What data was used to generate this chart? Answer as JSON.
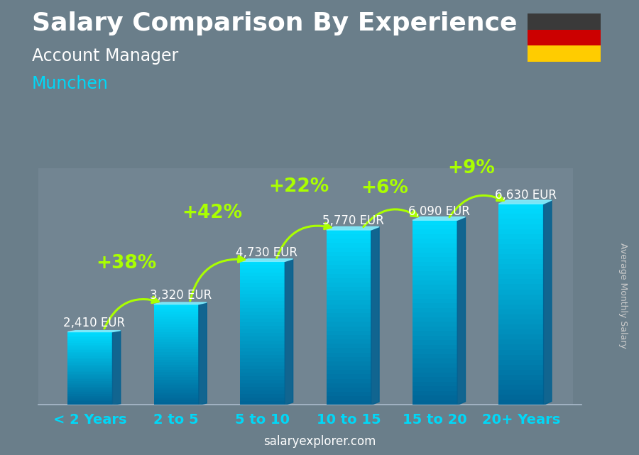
{
  "title": "Salary Comparison By Experience",
  "subtitle1": "Account Manager",
  "subtitle2": "Munchen",
  "categories": [
    "< 2 Years",
    "2 to 5",
    "5 to 10",
    "10 to 15",
    "15 to 20",
    "20+ Years"
  ],
  "values": [
    2410,
    3320,
    4730,
    5770,
    6090,
    6630
  ],
  "pct_changes": [
    null,
    "+38%",
    "+42%",
    "+22%",
    "+6%",
    "+9%"
  ],
  "value_labels": [
    "2,410 EUR",
    "3,320 EUR",
    "4,730 EUR",
    "5,770 EUR",
    "6,090 EUR",
    "6,630 EUR"
  ],
  "bar_color_mid": "#00b8e0",
  "bar_color_top": "#00d8f8",
  "bar_color_bottom": "#0078b0",
  "bar_color_side": "#008ab8",
  "bar_color_top_face": "#40e8ff",
  "bg_color": "#6a7e8a",
  "title_color": "#ffffff",
  "subtitle1_color": "#ffffff",
  "subtitle2_color": "#00d8f8",
  "pct_color": "#aaff00",
  "value_color": "#ffffff",
  "tick_color": "#00d8f8",
  "watermark_bold_color": "#ffffff",
  "watermark_regular_color": "#aaddff",
  "ylabel_color": "#cccccc",
  "watermark": "salaryexplorer.com",
  "ylabel_rotated": "Average Monthly Salary",
  "title_fontsize": 26,
  "subtitle1_fontsize": 17,
  "subtitle2_fontsize": 17,
  "pct_fontsize": 19,
  "value_fontsize": 12,
  "tick_fontsize": 14,
  "ylim_max": 7800,
  "flag_colors": [
    "#3a3a3a",
    "#cc0000",
    "#ffcc00"
  ],
  "bar_width": 0.52,
  "n_bars": 6
}
